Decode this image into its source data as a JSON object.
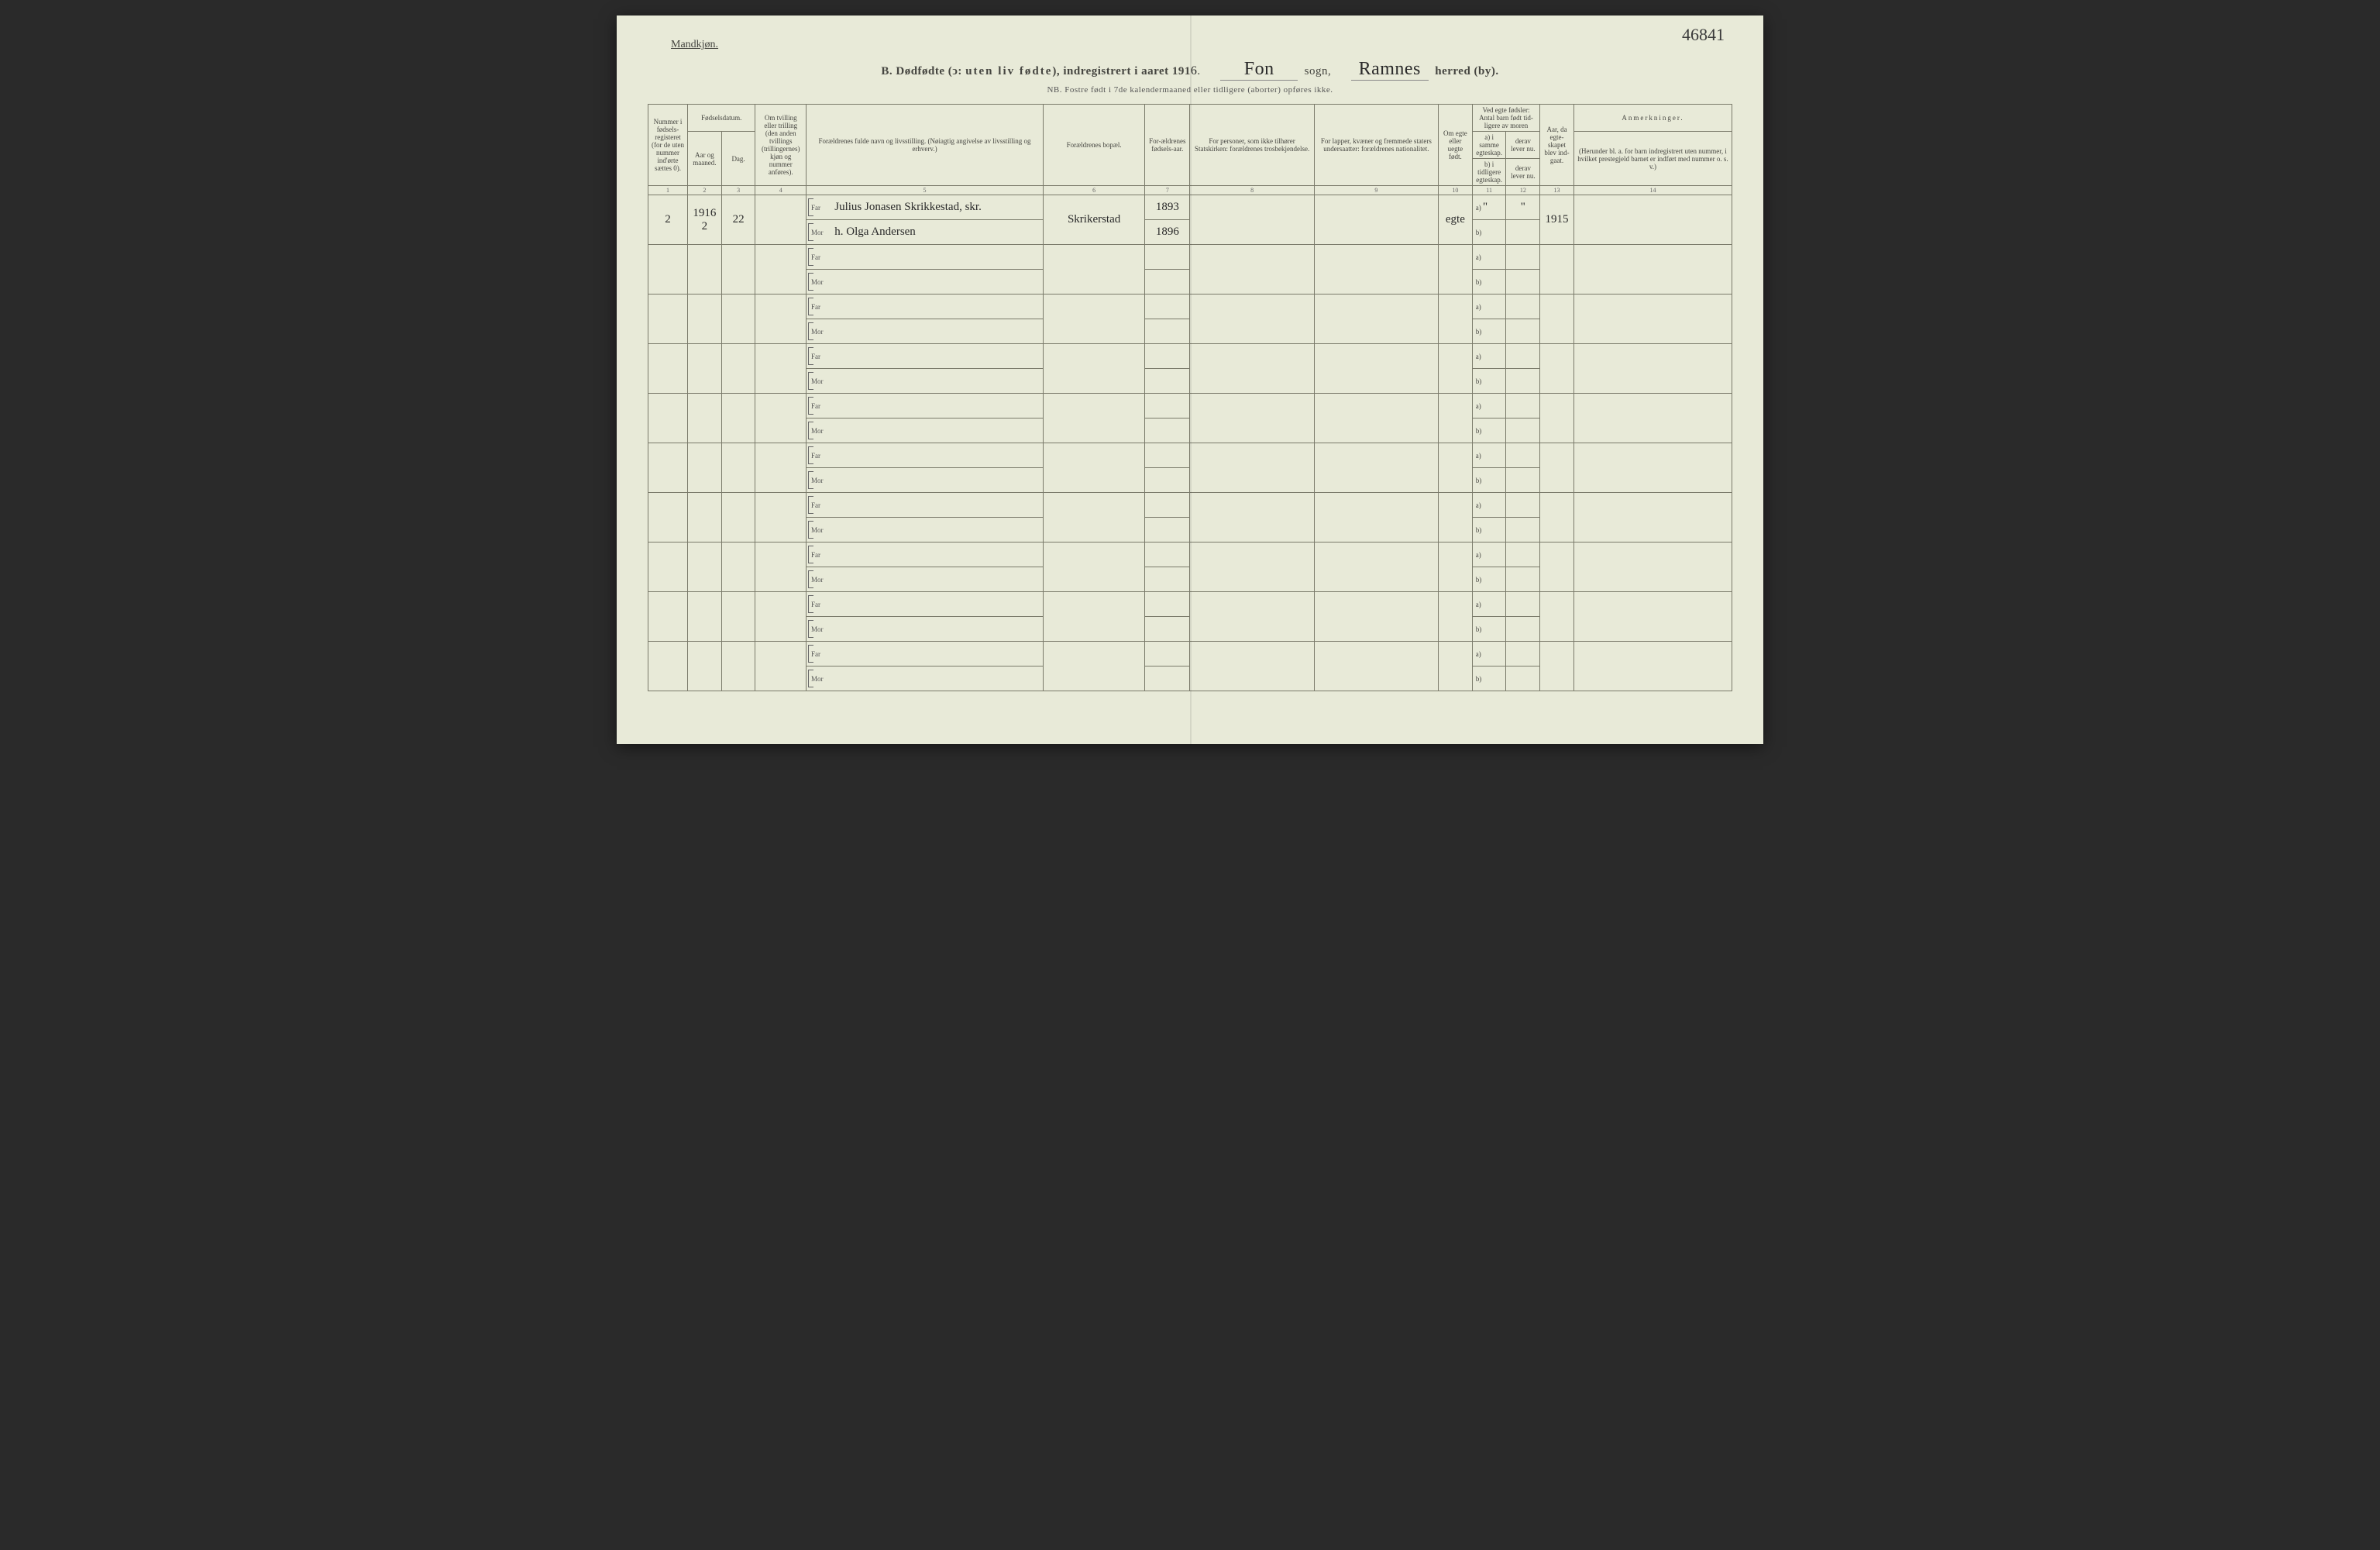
{
  "page_number": "46841",
  "gender_label": "Mandkjøn.",
  "title": {
    "prefix": "B.",
    "main": "Dødfødte (ↄ:",
    "spaced_part": "uten liv fødte",
    "after": "), indregistrert i aaret 191",
    "year_suffix": "6",
    "sogn_label": "sogn,",
    "sogn_value": "Fon",
    "herred_label": "herred (by).",
    "herred_value": "Ramnes"
  },
  "sub_note": "NB. Fostre født i 7de kalendermaaned eller tidligere (aborter) opføres ikke.",
  "headers": {
    "col1": "Nummer i fødsels-registeret (for de uten nummer ind'ørte sættes 0).",
    "col2_group": "Fødselsdatum.",
    "col2a": "Aar og maaned.",
    "col2b": "Dag.",
    "col3": "Om tvilling eller trilling (den anden tvillings (trillingernes) kjøn og nummer anføres).",
    "col4": "Forældrenes fulde navn og livsstilling. (Nøiagtig angivelse av livsstilling og erhverv.)",
    "col5": "Forældrenes bopæl.",
    "col6": "For-ældrenes fødsels-aar.",
    "col7": "For personer, som ikke tilhører Statskirken: forældrenes trosbekjendelse.",
    "col8": "For lapper, kvæner og fremmede staters undersaatter: forældrenes nationalitet.",
    "col9": "Om egte eller uegte født.",
    "col10_group": "Ved egte fødsler: Antal barn født tid-ligere av moren",
    "col10a": "a) i samme egteskap.",
    "col10b": "b) i tidligere egteskap.",
    "col10c": "derav lever nu.",
    "col10d": "derav lever nu.",
    "col11": "Aar, da egte-skapet blev ind-gaat.",
    "col12": "Anmerkninger.",
    "col12_sub": "(Herunder bl. a. for barn indregistrert uten nummer, i hvilket prestegjeld barnet er indført med nummer o. s. v.)"
  },
  "col_numbers": [
    "1",
    "2",
    "3",
    "4",
    "5",
    "6",
    "7",
    "8",
    "9",
    "10",
    "11",
    "12",
    "13",
    "14"
  ],
  "parent_labels": {
    "far": "Far",
    "mor": "Mor"
  },
  "ab_labels": {
    "a": "a)",
    "b": "b)"
  },
  "entries": [
    {
      "number": "2",
      "year_month": "1916 2",
      "day": "22",
      "twin": "",
      "far_name": "Julius Jonasen Skrikkestad, skr.",
      "mor_name": "h. Olga Andersen",
      "bopael": "Skrikerstad",
      "far_year": "1893",
      "mor_year": "1896",
      "egte": "egte",
      "a_val": "\"",
      "b_val": "",
      "derav_a": "\"",
      "year_married": "1915"
    }
  ],
  "empty_rows": 9,
  "colors": {
    "paper": "#e8ead8",
    "ink": "#454540",
    "handwriting": "#2a2a2a",
    "border": "#7a7a6a"
  },
  "col_widths": {
    "c1": "3.5%",
    "c2a": "3%",
    "c2b": "3%",
    "c3": "4.5%",
    "c4": "21%",
    "c5": "9%",
    "c6": "4%",
    "c7": "11%",
    "c8": "11%",
    "c9": "3%",
    "c10a": "3%",
    "c10b": "3%",
    "c11": "3%",
    "c12": "14%"
  }
}
